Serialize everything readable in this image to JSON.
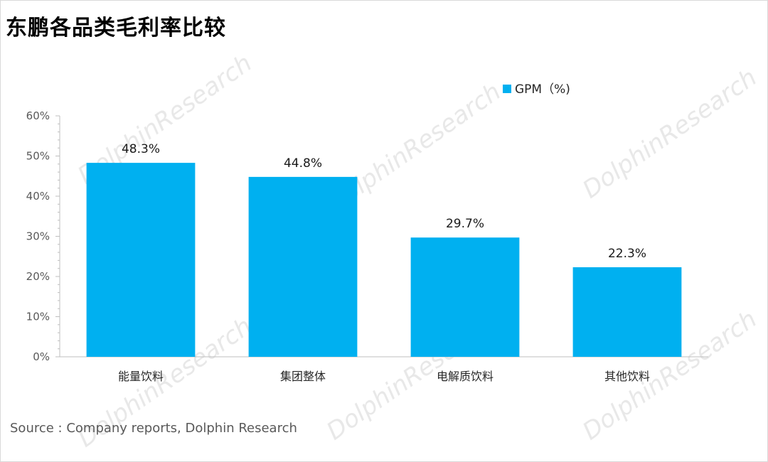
{
  "title": "东鹏各品类毛利率比较",
  "source": "Source : Company reports, Dolphin Research",
  "colors": {
    "bar": "#00b0f0",
    "axis": "#bfbfbf"
  },
  "chart_data": {
    "type": "bar",
    "title": "东鹏各品类毛利率比较",
    "categories": [
      "能量饮料",
      "集团整体",
      "电解质饮料",
      "其他饮料"
    ],
    "series": [
      {
        "name": "GPM（%)",
        "values": [
          48.3,
          44.8,
          29.7,
          22.3
        ]
      }
    ],
    "data_labels": [
      "48.3%",
      "44.8%",
      "29.7%",
      "22.3%"
    ],
    "y_ticks": [
      "0%",
      "10%",
      "20%",
      "30%",
      "40%",
      "50%",
      "60%"
    ],
    "y_tick_values": [
      0,
      10,
      20,
      30,
      40,
      50,
      60
    ],
    "ylim": [
      0,
      60
    ],
    "xlabel": "",
    "ylabel": "",
    "grid": false,
    "legend_position": "top-right"
  }
}
